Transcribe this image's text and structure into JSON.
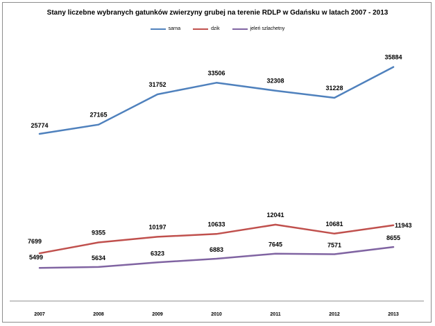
{
  "chart_data": {
    "type": "line",
    "title": "Stany liczebne wybranych gatunków zwierzyny grubej na terenie RDLP w Gdańsku w latach 2007 - 2013",
    "xlabel": "",
    "ylabel": "",
    "categories": [
      "2007",
      "2008",
      "2009",
      "2010",
      "2011",
      "2012",
      "2013"
    ],
    "series": [
      {
        "name": "sarna",
        "color": "#4f81bd",
        "values": [
          25774,
          27165,
          31752,
          33506,
          32308,
          31228,
          35884
        ]
      },
      {
        "name": "dzik",
        "color": "#c0504d",
        "values": [
          7699,
          9355,
          10197,
          10633,
          12041,
          10681,
          11943
        ]
      },
      {
        "name": "jeleń szlachetny",
        "color": "#8064a2",
        "values": [
          5499,
          5634,
          6323,
          6883,
          7645,
          7571,
          8655
        ]
      }
    ],
    "legend_position": "top",
    "grid": false
  }
}
